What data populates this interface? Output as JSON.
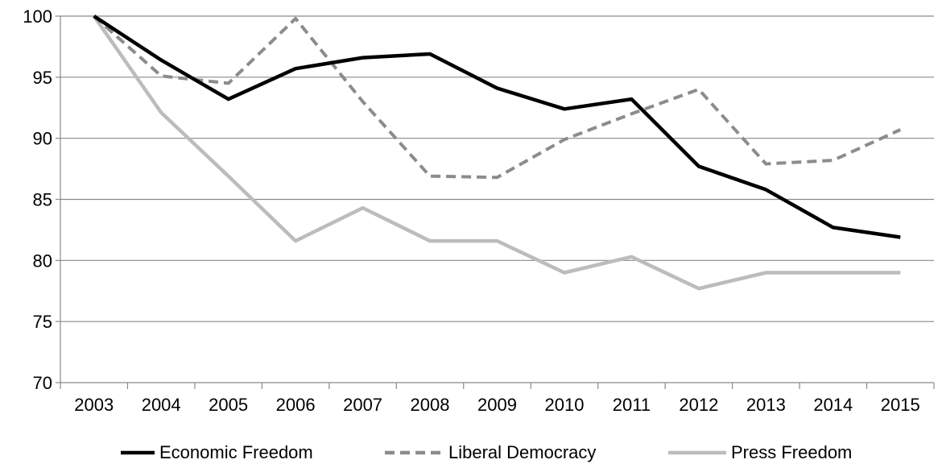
{
  "chart_data": {
    "type": "line",
    "title": "",
    "xlabel": "",
    "ylabel": "",
    "categories": [
      "2003",
      "2004",
      "2005",
      "2006",
      "2007",
      "2008",
      "2009",
      "2010",
      "2011",
      "2012",
      "2013",
      "2014",
      "2015"
    ],
    "ylim": [
      70,
      100
    ],
    "yticks": [
      70,
      75,
      80,
      85,
      90,
      95,
      100
    ],
    "grid": "horizontal",
    "legend": "bottom",
    "series": [
      {
        "name": "Economic Freedom",
        "color": "#000000",
        "style": "solid",
        "values": [
          100,
          96.4,
          93.2,
          95.7,
          96.6,
          96.9,
          94.1,
          92.4,
          93.2,
          87.7,
          85.8,
          82.7,
          81.9
        ]
      },
      {
        "name": "Liberal Democracy",
        "color": "#8c8c8c",
        "style": "dashed",
        "values": [
          100,
          95.1,
          94.5,
          99.8,
          93.0,
          86.9,
          86.8,
          89.9,
          92.0,
          94.0,
          87.9,
          88.2,
          90.7
        ]
      },
      {
        "name": "Press Freedom",
        "color": "#bcbcbc",
        "style": "solid",
        "values": [
          100,
          92.1,
          86.9,
          81.6,
          84.3,
          81.6,
          81.6,
          79.0,
          80.3,
          77.7,
          79.0,
          79.0,
          79.0
        ]
      }
    ]
  }
}
